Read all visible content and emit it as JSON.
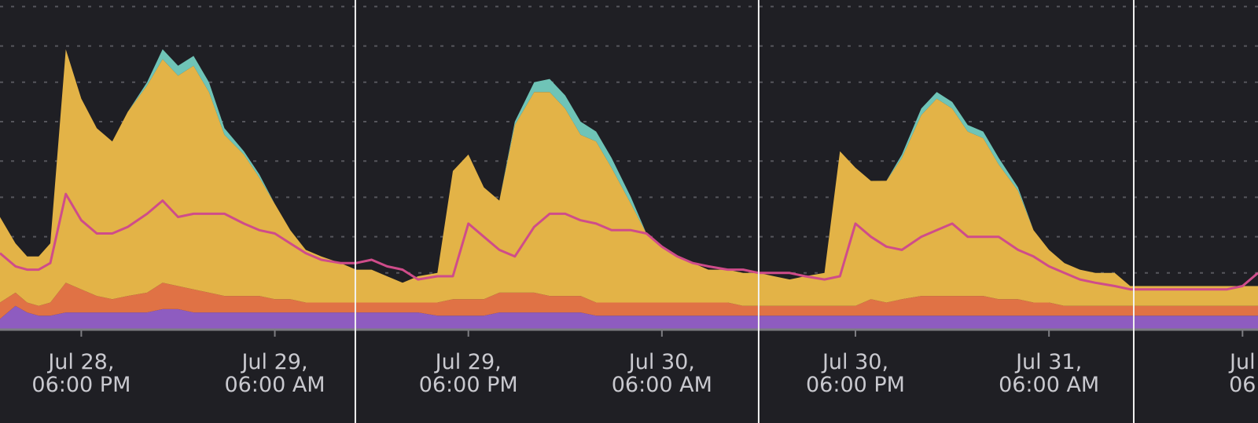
{
  "chart_data": {
    "type": "area",
    "stacked": true,
    "grid": true,
    "colors": {
      "background": "#1f1f24",
      "grid": "#56565c",
      "divider": "#f2f2f2",
      "axis": "#7d7d82",
      "tick_text": "#c9c9cf",
      "purple": "#8e5cc0",
      "orange": "#e07245",
      "yellow": "#e3b347",
      "teal": "#6fc4b7",
      "line": "#cf4c8a"
    },
    "x_ticks": [
      {
        "x": 28.75,
        "label": [
          "Jul 28,",
          "06:00 PM"
        ]
      },
      {
        "x": 29.25,
        "label": [
          "Jul 29,",
          "06:00 AM"
        ]
      },
      {
        "x": 29.75,
        "label": [
          "Jul 29,",
          "06:00 PM"
        ]
      },
      {
        "x": 30.25,
        "label": [
          "Jul 30,",
          "06:00 AM"
        ]
      },
      {
        "x": 30.75,
        "label": [
          "Jul 30,",
          "06:00 PM"
        ]
      },
      {
        "x": 31.25,
        "label": [
          "Jul 31,",
          "06:00 AM"
        ]
      },
      {
        "x": 31.75,
        "label": [
          "Jul",
          "06"
        ]
      }
    ],
    "day_dividers": [
      29.458,
      30.5,
      31.469
    ],
    "xlim": [
      28.54,
      31.79
    ],
    "ylim": [
      0,
      1
    ],
    "gridlines": [
      0.17,
      0.28,
      0.4,
      0.51,
      0.63,
      0.75,
      0.86,
      0.98
    ],
    "x": [
      28.54,
      28.58,
      28.61,
      28.64,
      28.67,
      28.71,
      28.75,
      28.79,
      28.83,
      28.87,
      28.92,
      28.96,
      29.0,
      29.04,
      29.08,
      29.12,
      29.17,
      29.21,
      29.25,
      29.29,
      29.33,
      29.37,
      29.42,
      29.46,
      29.5,
      29.54,
      29.58,
      29.62,
      29.67,
      29.71,
      29.75,
      29.79,
      29.83,
      29.87,
      29.92,
      29.96,
      30.0,
      30.04,
      30.08,
      30.12,
      30.17,
      30.21,
      30.25,
      30.29,
      30.33,
      30.37,
      30.42,
      30.46,
      30.5,
      30.54,
      30.58,
      30.62,
      30.67,
      30.71,
      30.75,
      30.79,
      30.83,
      30.87,
      30.92,
      30.96,
      31.0,
      31.04,
      31.08,
      31.12,
      31.17,
      31.21,
      31.25,
      31.29,
      31.33,
      31.37,
      31.42,
      31.46,
      31.5,
      31.54,
      31.58,
      31.62,
      31.67,
      31.71,
      31.75,
      31.79
    ],
    "series": [
      {
        "key": "purple",
        "values": [
          0.03,
          0.07,
          0.05,
          0.04,
          0.04,
          0.05,
          0.05,
          0.05,
          0.05,
          0.05,
          0.05,
          0.06,
          0.06,
          0.05,
          0.05,
          0.05,
          0.05,
          0.05,
          0.05,
          0.05,
          0.05,
          0.05,
          0.05,
          0.05,
          0.05,
          0.05,
          0.05,
          0.05,
          0.04,
          0.04,
          0.04,
          0.04,
          0.05,
          0.05,
          0.05,
          0.05,
          0.05,
          0.05,
          0.04,
          0.04,
          0.04,
          0.04,
          0.04,
          0.04,
          0.04,
          0.04,
          0.04,
          0.04,
          0.04,
          0.04,
          0.04,
          0.04,
          0.04,
          0.04,
          0.04,
          0.04,
          0.04,
          0.04,
          0.04,
          0.04,
          0.04,
          0.04,
          0.04,
          0.04,
          0.04,
          0.04,
          0.04,
          0.04,
          0.04,
          0.04,
          0.04,
          0.04,
          0.04,
          0.04,
          0.04,
          0.04,
          0.04,
          0.04,
          0.04,
          0.04
        ]
      },
      {
        "key": "orange",
        "values": [
          0.05,
          0.04,
          0.03,
          0.03,
          0.04,
          0.09,
          0.07,
          0.05,
          0.04,
          0.05,
          0.06,
          0.08,
          0.07,
          0.07,
          0.06,
          0.05,
          0.05,
          0.05,
          0.04,
          0.04,
          0.03,
          0.03,
          0.03,
          0.03,
          0.03,
          0.03,
          0.03,
          0.03,
          0.04,
          0.05,
          0.05,
          0.05,
          0.06,
          0.06,
          0.06,
          0.05,
          0.05,
          0.05,
          0.04,
          0.04,
          0.04,
          0.04,
          0.04,
          0.04,
          0.04,
          0.04,
          0.04,
          0.03,
          0.03,
          0.03,
          0.03,
          0.03,
          0.03,
          0.03,
          0.03,
          0.05,
          0.04,
          0.05,
          0.06,
          0.06,
          0.06,
          0.06,
          0.06,
          0.05,
          0.05,
          0.04,
          0.04,
          0.03,
          0.03,
          0.03,
          0.03,
          0.03,
          0.03,
          0.03,
          0.03,
          0.03,
          0.03,
          0.03,
          0.03,
          0.03
        ]
      },
      {
        "key": "yellow",
        "values": [
          0.26,
          0.15,
          0.14,
          0.15,
          0.18,
          0.71,
          0.58,
          0.51,
          0.48,
          0.56,
          0.63,
          0.68,
          0.64,
          0.68,
          0.61,
          0.49,
          0.43,
          0.36,
          0.29,
          0.21,
          0.16,
          0.14,
          0.12,
          0.1,
          0.1,
          0.08,
          0.06,
          0.08,
          0.09,
          0.39,
          0.44,
          0.34,
          0.28,
          0.51,
          0.61,
          0.62,
          0.57,
          0.49,
          0.49,
          0.41,
          0.3,
          0.21,
          0.17,
          0.14,
          0.12,
          0.1,
          0.1,
          0.1,
          0.1,
          0.09,
          0.08,
          0.09,
          0.1,
          0.47,
          0.42,
          0.36,
          0.37,
          0.43,
          0.55,
          0.6,
          0.57,
          0.5,
          0.48,
          0.41,
          0.33,
          0.22,
          0.16,
          0.13,
          0.11,
          0.1,
          0.1,
          0.06,
          0.06,
          0.06,
          0.06,
          0.06,
          0.06,
          0.06,
          0.06,
          0.06
        ]
      },
      {
        "key": "teal",
        "values": [
          0.0,
          0.0,
          0.0,
          0.0,
          0.0,
          0.0,
          0.0,
          0.0,
          0.0,
          0.0,
          0.01,
          0.03,
          0.03,
          0.03,
          0.03,
          0.02,
          0.01,
          0.01,
          0.0,
          0.0,
          0.0,
          0.0,
          0.0,
          0.0,
          0.0,
          0.0,
          0.0,
          0.0,
          0.0,
          0.0,
          0.0,
          0.0,
          0.0,
          0.01,
          0.03,
          0.04,
          0.04,
          0.04,
          0.03,
          0.03,
          0.02,
          0.0,
          0.0,
          0.0,
          0.0,
          0.0,
          0.0,
          0.0,
          0.0,
          0.0,
          0.0,
          0.0,
          0.0,
          0.0,
          0.0,
          0.0,
          0.0,
          0.01,
          0.02,
          0.02,
          0.02,
          0.02,
          0.02,
          0.02,
          0.01,
          0.0,
          0.0,
          0.0,
          0.0,
          0.0,
          0.0,
          0.0,
          0.0,
          0.0,
          0.0,
          0.0,
          0.0,
          0.0,
          0.0,
          0.0
        ]
      }
    ],
    "line": {
      "key": "line",
      "values": [
        0.23,
        0.19,
        0.18,
        0.18,
        0.2,
        0.41,
        0.33,
        0.29,
        0.29,
        0.31,
        0.35,
        0.39,
        0.34,
        0.35,
        0.35,
        0.35,
        0.32,
        0.3,
        0.29,
        0.26,
        0.23,
        0.21,
        0.2,
        0.2,
        0.21,
        0.19,
        0.18,
        0.15,
        0.16,
        0.16,
        0.32,
        0.28,
        0.24,
        0.22,
        0.31,
        0.35,
        0.35,
        0.33,
        0.32,
        0.3,
        0.3,
        0.29,
        0.25,
        0.22,
        0.2,
        0.19,
        0.18,
        0.18,
        0.17,
        0.17,
        0.17,
        0.16,
        0.15,
        0.16,
        0.32,
        0.28,
        0.25,
        0.24,
        0.28,
        0.3,
        0.32,
        0.28,
        0.28,
        0.28,
        0.24,
        0.22,
        0.19,
        0.17,
        0.15,
        0.14,
        0.13,
        0.12,
        0.12,
        0.12,
        0.12,
        0.12,
        0.12,
        0.12,
        0.13,
        0.17
      ]
    }
  }
}
